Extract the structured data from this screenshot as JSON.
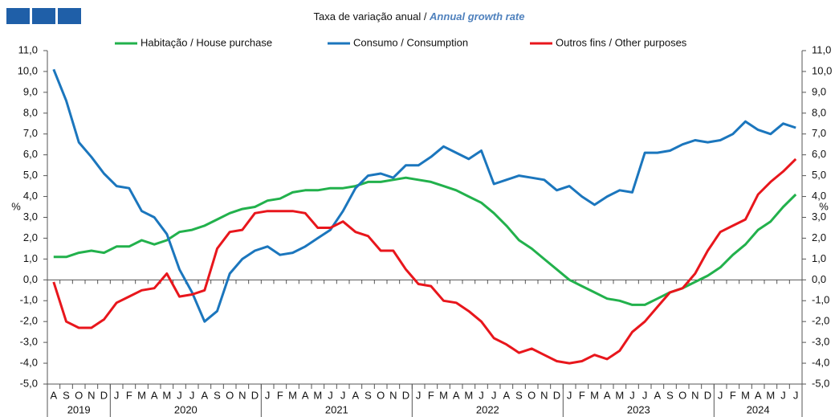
{
  "chart_data": {
    "type": "line",
    "title": "Taxa de variação anual / ",
    "title_en": "Annual growth rate",
    "ylabel": "%",
    "categories": [
      "A",
      "S",
      "O",
      "N",
      "D",
      "J",
      "F",
      "M",
      "A",
      "M",
      "J",
      "J",
      "A",
      "S",
      "O",
      "N",
      "D",
      "J",
      "F",
      "M",
      "A",
      "M",
      "J",
      "J",
      "A",
      "S",
      "O",
      "N",
      "D",
      "J",
      "F",
      "M",
      "A",
      "M",
      "J",
      "J",
      "A",
      "S",
      "O",
      "N",
      "D",
      "J",
      "F",
      "M",
      "A",
      "M",
      "J",
      "J",
      "A",
      "S",
      "O",
      "N",
      "D",
      "J",
      "F",
      "M",
      "A",
      "M",
      "J",
      "J"
    ],
    "years": [
      "2019",
      "2020",
      "2021",
      "2022",
      "2023",
      "2024"
    ],
    "ylim": [
      -5,
      11
    ],
    "yticks": [
      {
        "value": 11,
        "label": "11,0"
      },
      {
        "value": 10,
        "label": "10,0"
      },
      {
        "value": 9,
        "label": "9,0"
      },
      {
        "value": 8,
        "label": "8,0"
      },
      {
        "value": 7,
        "label": "7,0"
      },
      {
        "value": 6,
        "label": "6,0"
      },
      {
        "value": 5,
        "label": "5,0"
      },
      {
        "value": 4,
        "label": "4,0"
      },
      {
        "value": 3,
        "label": "3,0"
      },
      {
        "value": 2,
        "label": "2,0"
      },
      {
        "value": 1,
        "label": "1,0"
      },
      {
        "value": 0,
        "label": "0,0"
      },
      {
        "value": -1,
        "label": "-1,0"
      },
      {
        "value": -2,
        "label": "-2,0"
      },
      {
        "value": -3,
        "label": "-3,0"
      },
      {
        "value": -4,
        "label": "-4,0"
      },
      {
        "value": -5,
        "label": "-5,0"
      }
    ],
    "series": [
      {
        "name": "Habitação / House purchase",
        "color": "#22b14c",
        "values": [
          1.1,
          1.1,
          1.3,
          1.4,
          1.3,
          1.6,
          1.6,
          1.9,
          1.7,
          1.9,
          2.3,
          2.4,
          2.6,
          2.9,
          3.2,
          3.4,
          3.5,
          3.8,
          3.9,
          4.2,
          4.3,
          4.3,
          4.4,
          4.4,
          4.5,
          4.7,
          4.7,
          4.8,
          4.9,
          4.8,
          4.7,
          4.5,
          4.3,
          4.0,
          3.7,
          3.2,
          2.6,
          1.9,
          1.5,
          1.0,
          0.5,
          0.0,
          -0.3,
          -0.6,
          -0.9,
          -1.0,
          -1.2,
          -1.2,
          -0.9,
          -0.6,
          -0.4,
          -0.1,
          0.2,
          0.6,
          1.2,
          1.7,
          2.4,
          2.8,
          3.5,
          4.1
        ]
      },
      {
        "name": "Consumo / Consumption",
        "color": "#1b76bd",
        "values": [
          10.1,
          8.6,
          6.6,
          5.9,
          5.1,
          4.5,
          4.4,
          3.3,
          3.0,
          2.2,
          0.5,
          -0.6,
          -2.0,
          -1.5,
          0.3,
          1.0,
          1.4,
          1.6,
          1.2,
          1.3,
          1.6,
          2.0,
          2.4,
          3.3,
          4.4,
          5.0,
          5.1,
          4.9,
          5.5,
          5.5,
          5.9,
          6.4,
          6.1,
          5.8,
          6.2,
          4.6,
          4.8,
          5.0,
          4.9,
          4.8,
          4.3,
          4.5,
          4.0,
          3.6,
          4.0,
          4.3,
          4.2,
          6.1,
          6.1,
          6.2,
          6.5,
          6.7,
          6.6,
          6.7,
          7.0,
          7.6,
          7.2,
          7.0,
          7.5,
          7.3
        ]
      },
      {
        "name": "Outros fins / Other purposes",
        "color": "#e8161c",
        "values": [
          -0.1,
          -2.0,
          -2.3,
          -2.3,
          -1.9,
          -1.1,
          -0.8,
          -0.5,
          -0.4,
          0.3,
          -0.8,
          -0.7,
          -0.5,
          1.5,
          2.3,
          2.4,
          3.2,
          3.3,
          3.3,
          3.3,
          3.2,
          2.5,
          2.5,
          2.8,
          2.3,
          2.1,
          1.4,
          1.4,
          0.5,
          -0.2,
          -0.3,
          -1.0,
          -1.1,
          -1.5,
          -2.0,
          -2.8,
          -3.1,
          -3.5,
          -3.3,
          -3.6,
          -3.9,
          -4.0,
          -3.9,
          -3.6,
          -3.8,
          -3.4,
          -2.5,
          -2.0,
          -1.3,
          -0.6,
          -0.4,
          0.3,
          1.4,
          2.3,
          2.6,
          2.9,
          4.1,
          4.7,
          5.2,
          5.8
        ]
      }
    ]
  }
}
